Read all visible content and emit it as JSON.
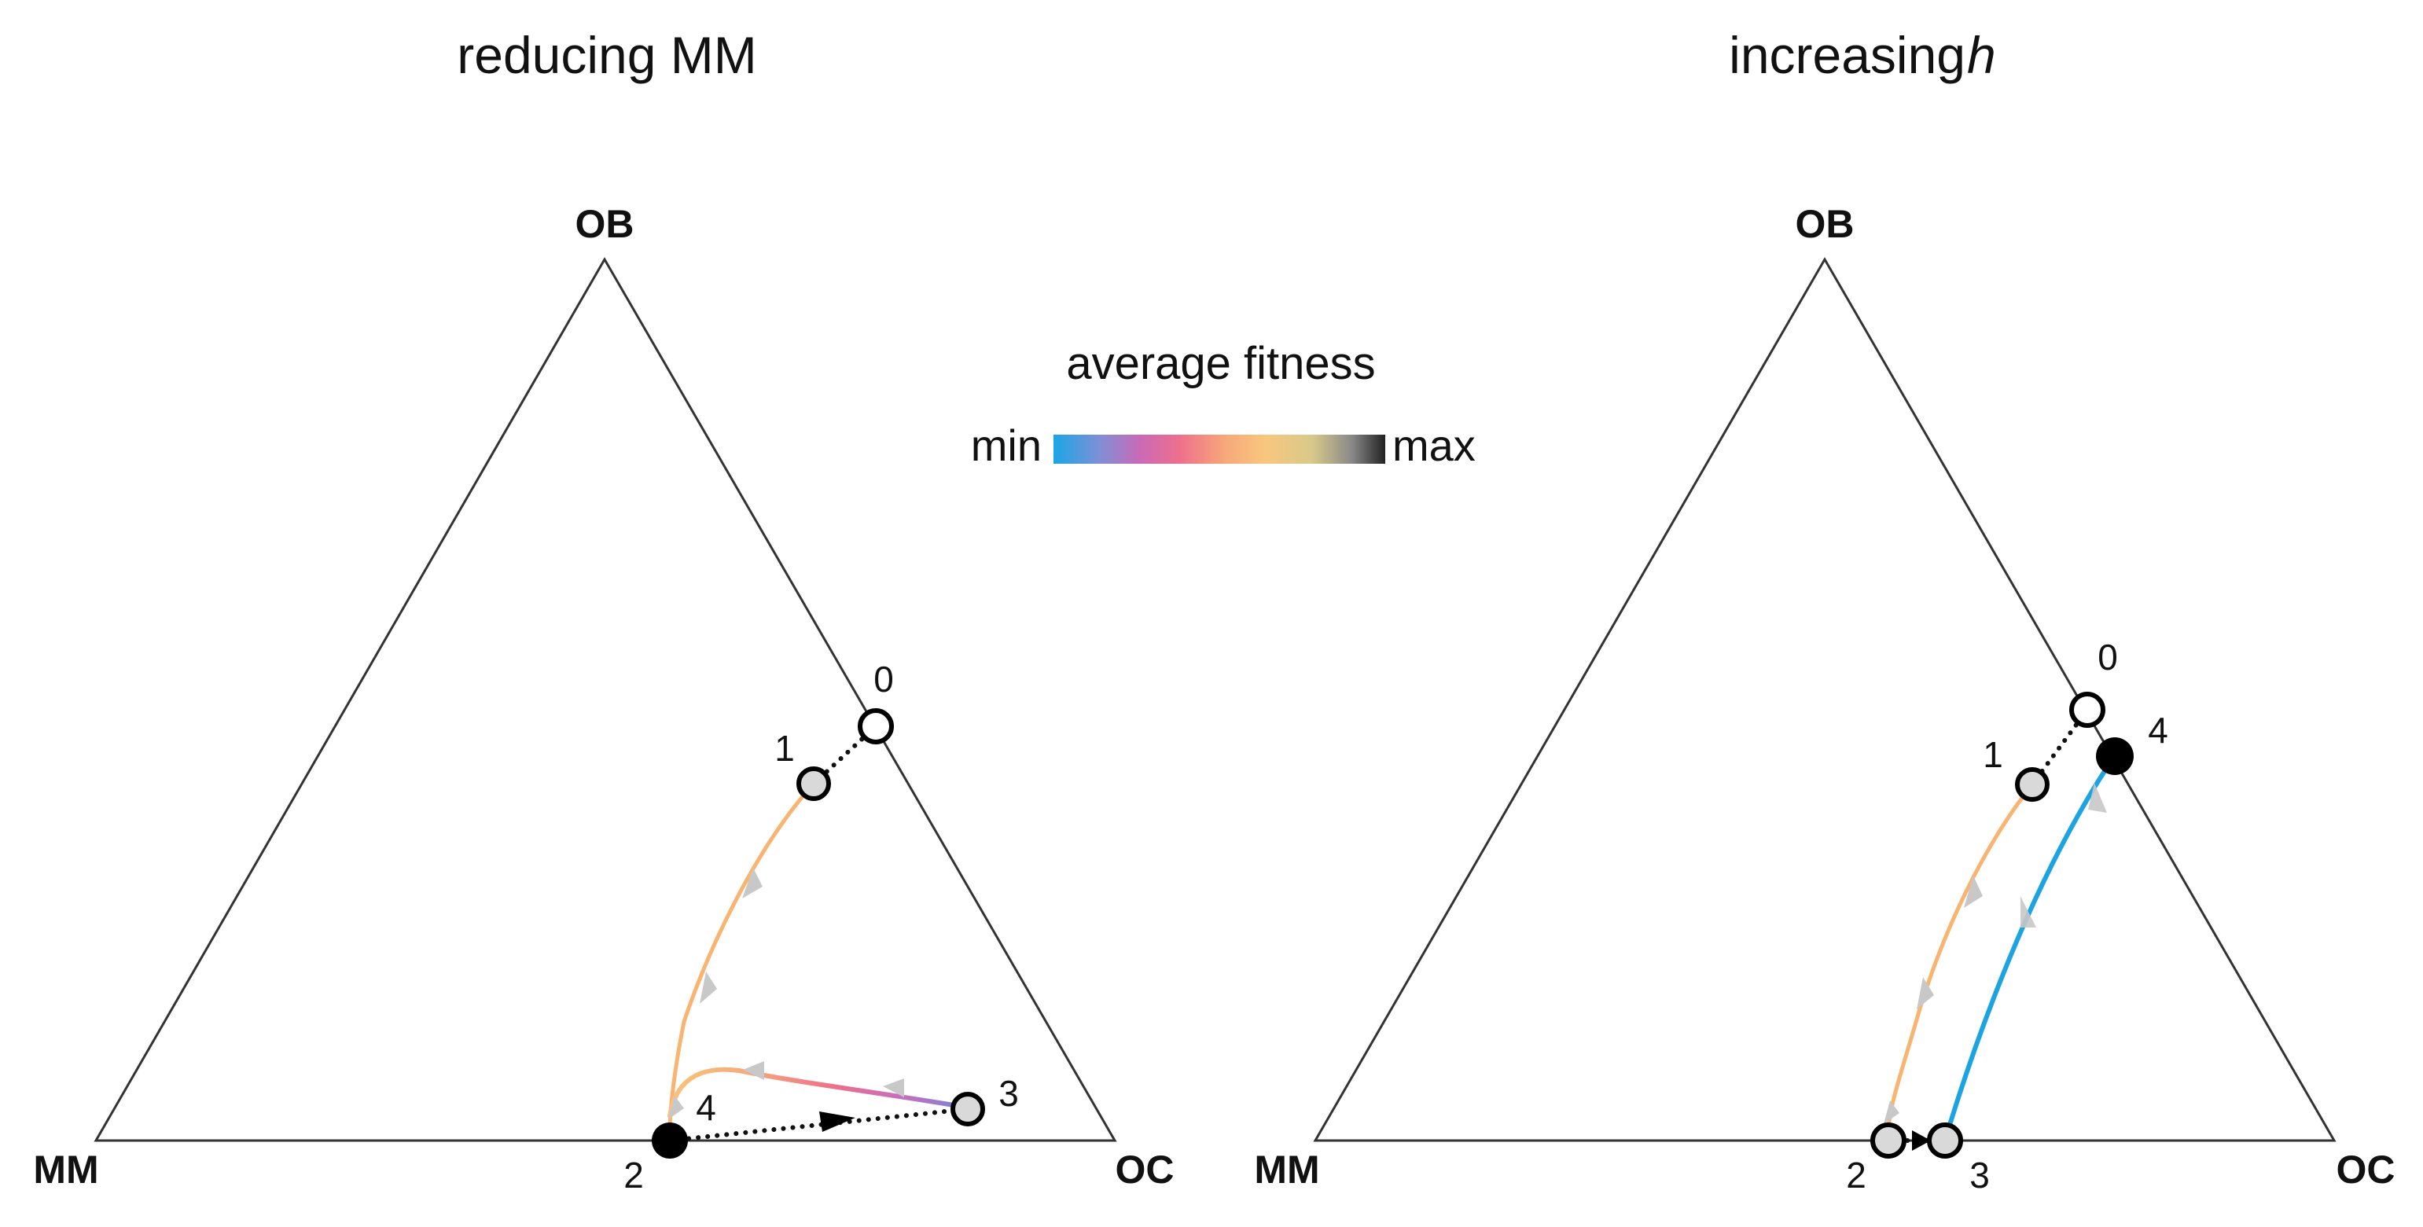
{
  "panels": [
    {
      "title": "reducing MM",
      "vertices": {
        "top": "OB",
        "left": "MM",
        "right": "OC"
      },
      "point_labels": [
        "0",
        "1",
        "2",
        "3",
        "4"
      ]
    },
    {
      "title_text": "increasing ",
      "title_italic": "h",
      "vertices": {
        "top": "OB",
        "left": "MM",
        "right": "OC"
      },
      "point_labels": [
        "0",
        "1",
        "2",
        "3",
        "4"
      ]
    }
  ],
  "legend": {
    "title": "average fitness",
    "min_label": "min",
    "max_label": "max",
    "gradient_colors": [
      "#1aa6e6",
      "#7f8fd6",
      "#c96ab8",
      "#ee6f8c",
      "#f7a97a",
      "#f8c77e",
      "#d8c98a",
      "#888888",
      "#222222"
    ]
  },
  "colors": {
    "open_point": "#ffffff",
    "intermediate_point": "#d9d9d9",
    "final_point": "#000000",
    "trajectory_orange": "#f8b470",
    "trajectory_blue": "#1ca3e2",
    "arrowhead_gray": "#c8c8c8"
  }
}
